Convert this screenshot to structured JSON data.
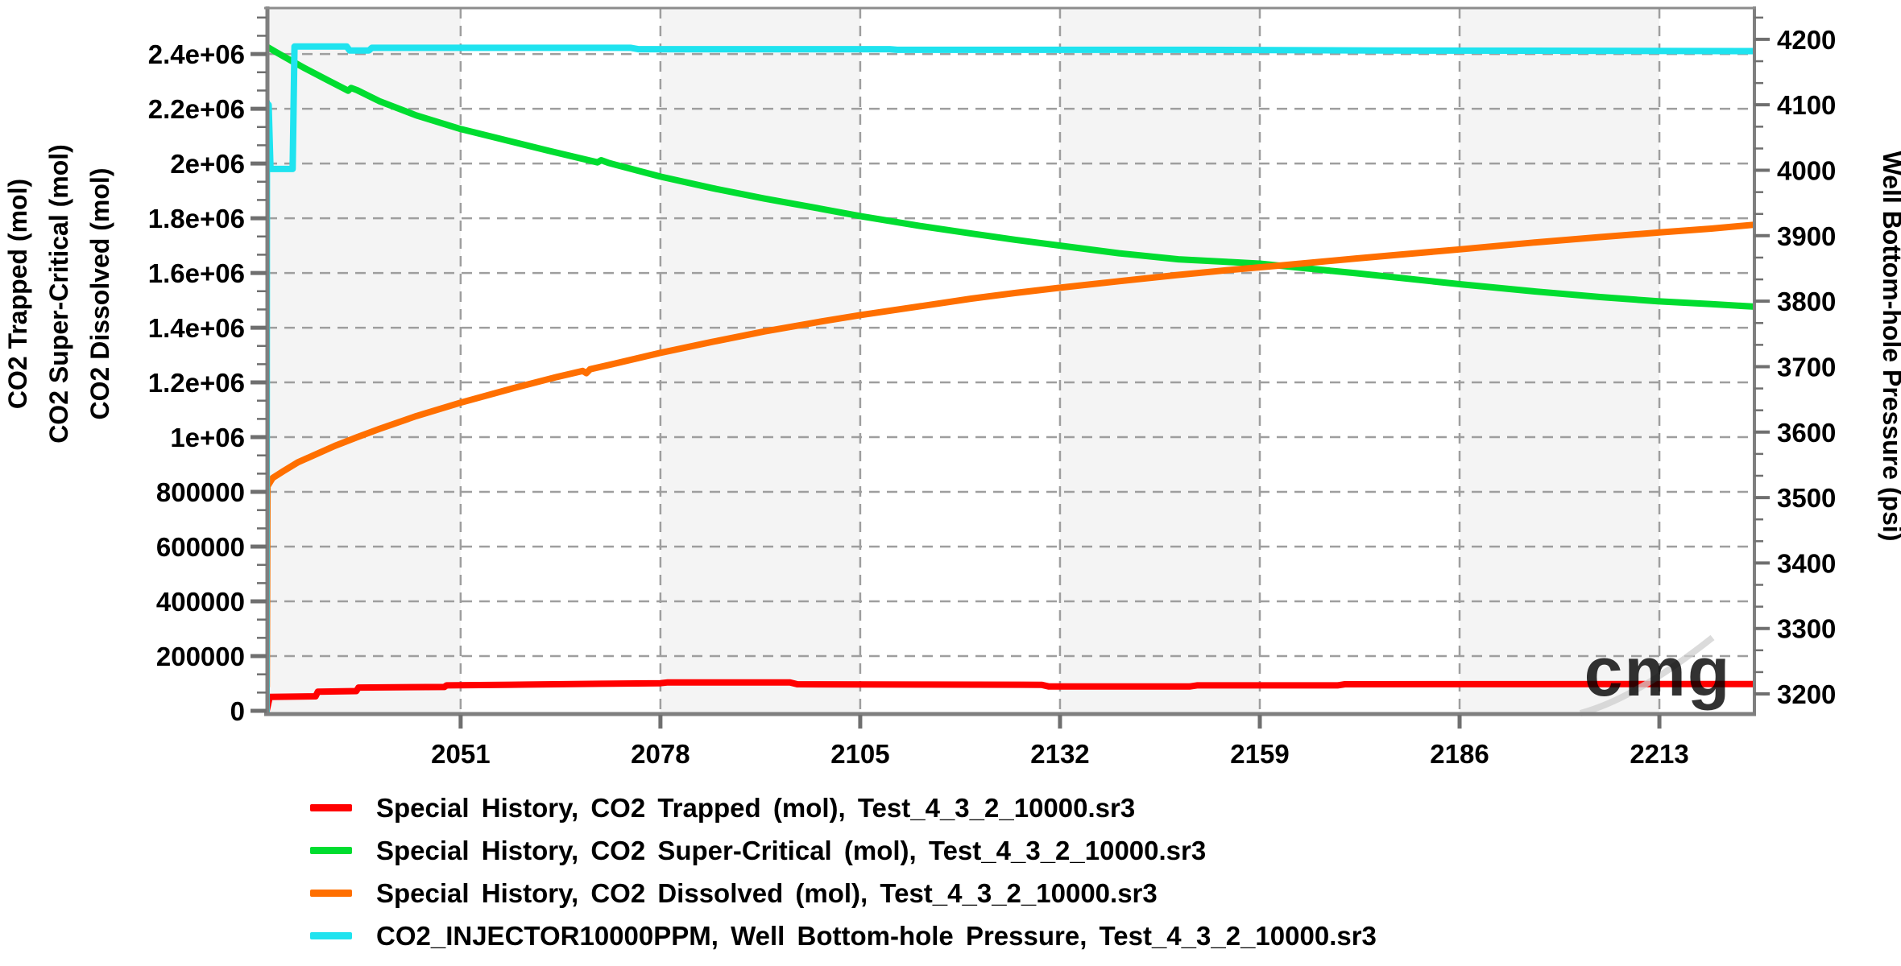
{
  "chart": {
    "watermark_text": "cmg",
    "style": {
      "band_color": "#f4f4f4",
      "grid_color": "#9e9e9e",
      "frame_color": "#7f7f7f",
      "tick_color": "#6f6f6f",
      "watermark_color": "#cfcfcf"
    }
  },
  "chart_data": {
    "type": "line",
    "title": "",
    "grid": true,
    "legend_position": "bottom",
    "x_axis": {
      "label": "",
      "range": [
        2024.78,
        2225.84
      ],
      "ticks": [
        2051,
        2078,
        2105,
        2132,
        2159,
        2186,
        2213
      ]
    },
    "y_axis_left": {
      "title_lines": [
        "CO2 Trapped (mol)",
        "CO2 Super-Critical (mol)",
        "CO2 Dissolved (mol)"
      ],
      "range": [
        -8800,
        2568000
      ],
      "major_ticks": [
        {
          "value": 0,
          "label": "0"
        },
        {
          "value": 200000,
          "label": "200000"
        },
        {
          "value": 400000,
          "label": "400000"
        },
        {
          "value": 600000,
          "label": "600000"
        },
        {
          "value": 800000,
          "label": "800000"
        },
        {
          "value": 1000000,
          "label": "1e+06"
        },
        {
          "value": 1200000,
          "label": "1.2e+06"
        },
        {
          "value": 1400000,
          "label": "1.4e+06"
        },
        {
          "value": 1600000,
          "label": "1.6e+06"
        },
        {
          "value": 1800000,
          "label": "1.8e+06"
        },
        {
          "value": 2000000,
          "label": "2e+06"
        },
        {
          "value": 2200000,
          "label": "2.2e+06"
        },
        {
          "value": 2400000,
          "label": "2.4e+06"
        }
      ],
      "minor_step": 66666.7
    },
    "y_axis_right": {
      "title": "Well Bottom-hole Pressure (psi)",
      "range": [
        3170.5,
        4247.8
      ],
      "major_ticks": [
        3200,
        3300,
        3400,
        3500,
        3600,
        3700,
        3800,
        3900,
        4000,
        4100,
        4200
      ],
      "minor_step": 33.33
    },
    "series": [
      {
        "name": "Special History, CO2 Trapped (mol), Test_4_3_2_10000.sr3",
        "color": "#ff0000",
        "axis": "left",
        "points": [
          [
            2024.8,
            2000
          ],
          [
            2025.2,
            51000
          ],
          [
            2031.4,
            53000
          ],
          [
            2031.7,
            70000
          ],
          [
            2036.9,
            72000
          ],
          [
            2037.2,
            85000
          ],
          [
            2048.8,
            87000
          ],
          [
            2049.1,
            93000
          ],
          [
            2060,
            96000
          ],
          [
            2070,
            99000
          ],
          [
            2078,
            101000
          ],
          [
            2079,
            104000
          ],
          [
            2095.5,
            104000
          ],
          [
            2096.5,
            97000
          ],
          [
            2114,
            96000
          ],
          [
            2129.5,
            95000
          ],
          [
            2130.5,
            89000
          ],
          [
            2149.5,
            89000
          ],
          [
            2150.5,
            93000
          ],
          [
            2169.5,
            93000
          ],
          [
            2170.5,
            97000
          ],
          [
            2225.8,
            98000
          ]
        ]
      },
      {
        "name": "Special History, CO2 Super-Critical (mol), Test_4_3_2_10000.sr3",
        "color": "#00dd30",
        "axis": "left",
        "points": [
          [
            2024.8,
            2427000
          ],
          [
            2026,
            2408000
          ],
          [
            2028,
            2377000
          ],
          [
            2030,
            2347000
          ],
          [
            2033,
            2305000
          ],
          [
            2035.8,
            2266000
          ],
          [
            2036.2,
            2276000
          ],
          [
            2037,
            2268000
          ],
          [
            2040,
            2228000
          ],
          [
            2045,
            2176000
          ],
          [
            2051,
            2126000
          ],
          [
            2057,
            2086000
          ],
          [
            2063,
            2046000
          ],
          [
            2069.5,
            2004000
          ],
          [
            2070,
            2012000
          ],
          [
            2071,
            2002000
          ],
          [
            2078,
            1952000
          ],
          [
            2085,
            1910000
          ],
          [
            2092,
            1872000
          ],
          [
            2100,
            1833000
          ],
          [
            2105,
            1808000
          ],
          [
            2113,
            1772000
          ],
          [
            2120,
            1744000
          ],
          [
            2126,
            1721000
          ],
          [
            2132,
            1700000
          ],
          [
            2140,
            1672000
          ],
          [
            2148,
            1650000
          ],
          [
            2155,
            1640000
          ],
          [
            2159,
            1634000
          ],
          [
            2166,
            1615000
          ],
          [
            2172,
            1599000
          ],
          [
            2180,
            1576000
          ],
          [
            2186,
            1559000
          ],
          [
            2196,
            1533000
          ],
          [
            2205,
            1512000
          ],
          [
            2213,
            1496000
          ],
          [
            2220,
            1486000
          ],
          [
            2225.8,
            1477000
          ]
        ]
      },
      {
        "name": "Special History, CO2 Dissolved (mol), Test_4_3_2_10000.sr3",
        "color": "#ff6f00",
        "axis": "left",
        "points": [
          [
            2024.8,
            88000
          ],
          [
            2024.9,
            820000
          ],
          [
            2025.6,
            851000
          ],
          [
            2027,
            875000
          ],
          [
            2029,
            908000
          ],
          [
            2031,
            932000
          ],
          [
            2034,
            968000
          ],
          [
            2037,
            1000000
          ],
          [
            2040,
            1030000
          ],
          [
            2045,
            1077000
          ],
          [
            2051,
            1126000
          ],
          [
            2058,
            1178000
          ],
          [
            2064,
            1220000
          ],
          [
            2067.5,
            1242000
          ],
          [
            2068,
            1234000
          ],
          [
            2068.5,
            1248000
          ],
          [
            2072,
            1270000
          ],
          [
            2078,
            1308000
          ],
          [
            2085,
            1348000
          ],
          [
            2092,
            1386000
          ],
          [
            2100,
            1424000
          ],
          [
            2105,
            1446000
          ],
          [
            2113,
            1478000
          ],
          [
            2120,
            1506000
          ],
          [
            2126,
            1527000
          ],
          [
            2132,
            1546000
          ],
          [
            2140,
            1570000
          ],
          [
            2148,
            1593000
          ],
          [
            2155,
            1611000
          ],
          [
            2162,
            1628000
          ],
          [
            2172,
            1653000
          ],
          [
            2180,
            1672000
          ],
          [
            2186,
            1686000
          ],
          [
            2196,
            1711000
          ],
          [
            2205,
            1731000
          ],
          [
            2213,
            1748000
          ],
          [
            2220,
            1762000
          ],
          [
            2225.8,
            1776000
          ]
        ]
      },
      {
        "name": "CO2_INJECTOR10000PPM, Well Bottom-hole Pressure, Test_4_3_2_10000.sr3",
        "color": "#1fe3ef",
        "axis": "right",
        "points": [
          [
            2024.78,
            3172
          ],
          [
            2024.82,
            4104
          ],
          [
            2024.95,
            4074
          ],
          [
            2025.05,
            4100
          ],
          [
            2025.3,
            4002
          ],
          [
            2028.3,
            4002
          ],
          [
            2028.55,
            4189
          ],
          [
            2035.6,
            4189
          ],
          [
            2036,
            4183
          ],
          [
            2038.6,
            4183
          ],
          [
            2039,
            4187
          ],
          [
            2074,
            4187
          ],
          [
            2075,
            4185
          ],
          [
            2109,
            4185
          ],
          [
            2110,
            4184
          ],
          [
            2150,
            4184
          ],
          [
            2175,
            4183
          ],
          [
            2225.8,
            4182
          ]
        ]
      }
    ]
  }
}
